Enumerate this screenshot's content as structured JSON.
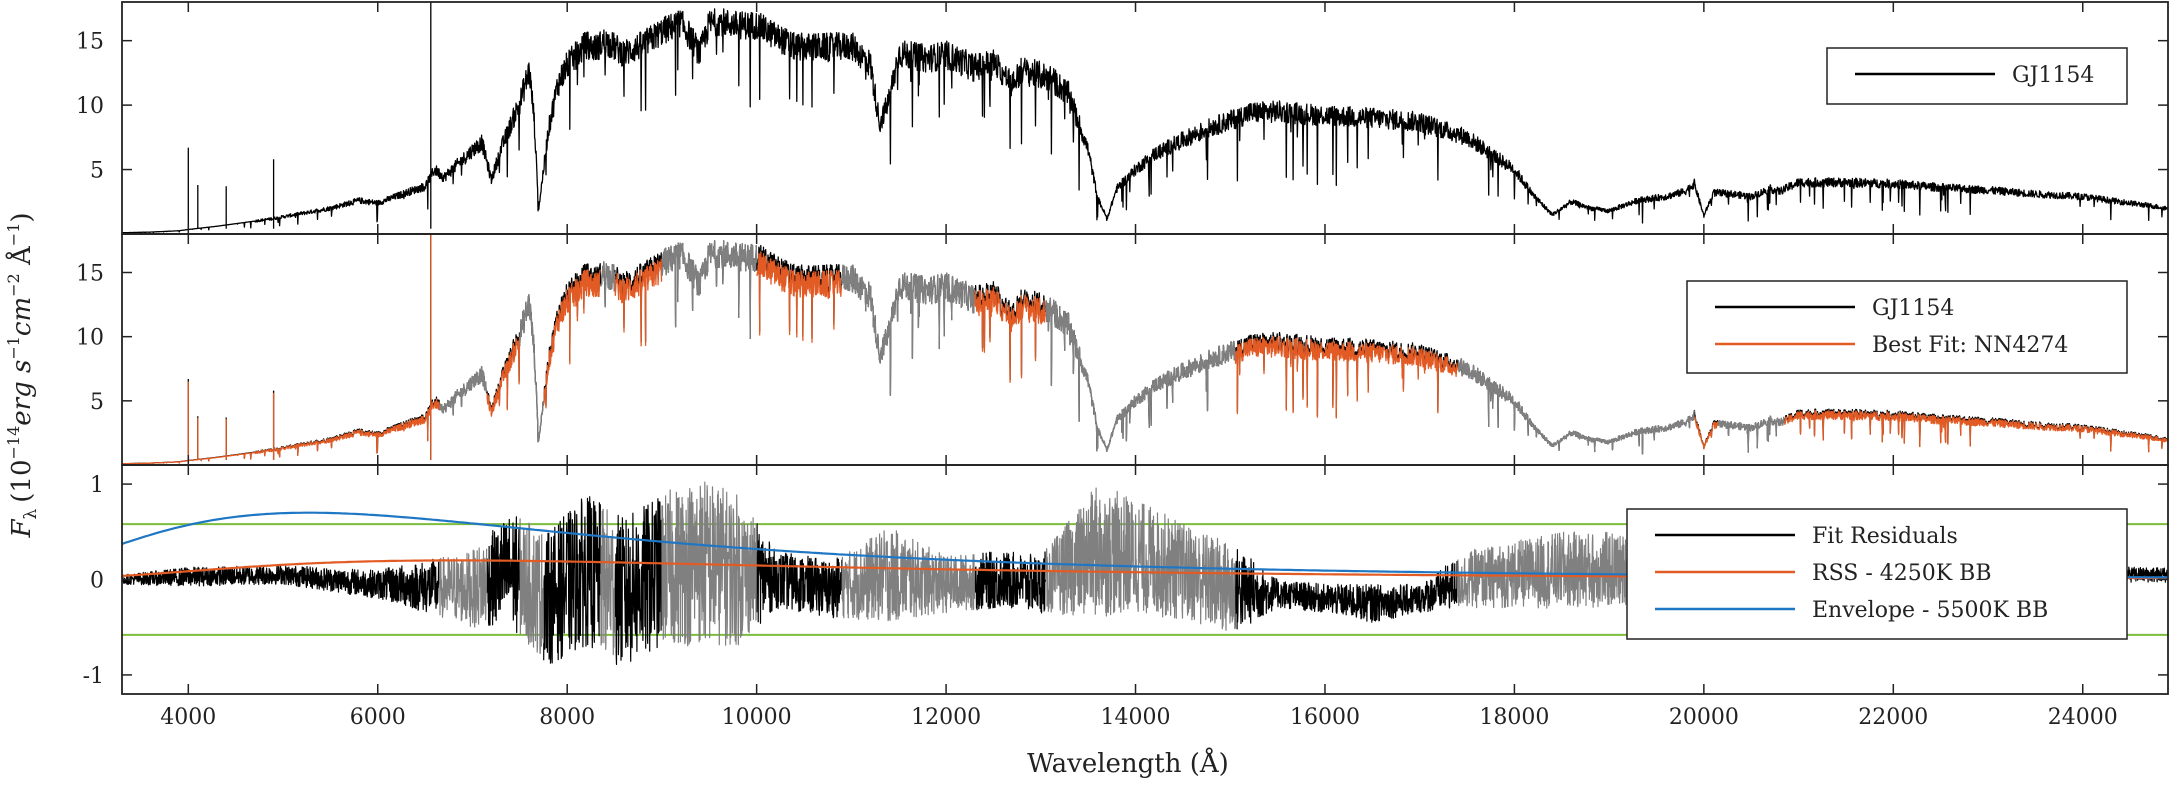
{
  "chart_data": {
    "type": "line",
    "shared_x": {
      "label": "Wavelength (Å)",
      "lim": [
        3300,
        24900
      ],
      "ticks": [
        4000,
        6000,
        8000,
        10000,
        12000,
        14000,
        16000,
        18000,
        20000,
        22000,
        24000
      ],
      "tick_labels": [
        "4000",
        "6000",
        "8000",
        "10000",
        "12000",
        "14000",
        "16000",
        "18000",
        "20000",
        "22000",
        "24000"
      ]
    },
    "shared_ylabel": "F_λ (10^−14 erg s^−1 cm^−2 Å^−1)",
    "ylabel_parts": {
      "symbol": "F",
      "symbol_sub": "λ",
      "open": "(10",
      "exp1": "−14",
      "erg": "erg s",
      "exp2": "−1",
      "cm": "cm",
      "exp3": "−2",
      "angstrom": " Å",
      "exp4": "−1",
      "close": ")"
    },
    "colors": {
      "observed": "#000000",
      "masked": "#808080",
      "fit": "#e35b24",
      "rss": "#e35b24",
      "envelope": "#1f77c4",
      "threshold": "#7dbd3c"
    },
    "panels": [
      {
        "ylim": [
          0,
          18
        ],
        "yticks": [
          5,
          10,
          15
        ],
        "ytick_labels": [
          "5",
          "10",
          "15"
        ],
        "legend": {
          "placement": "top-right",
          "entries": [
            "GJ1154"
          ]
        },
        "series": [
          {
            "name": "GJ1154",
            "x": [
              3300,
              3600,
              3900,
              4000,
              4300,
              4600,
              4900,
              5200,
              5500,
              5800,
              6000,
              6300,
              6500,
              6600,
              6700,
              6900,
              7000,
              7100,
              7200,
              7300,
              7500,
              7600,
              7650,
              7700,
              7800,
              7900,
              8000,
              8200,
              8300,
              8400,
              8600,
              8800,
              9000,
              9200,
              9300,
              9400,
              9500,
              9600,
              9800,
              10000,
              10400,
              10800,
              11000,
              11200,
              11300,
              11400,
              11500,
              11800,
              12000,
              12300,
              12500,
              12700,
              12800,
              12900,
              13100,
              13300,
              13500,
              13600,
              13700,
              13800,
              14000,
              14200,
              14500,
              14800,
              15000,
              15200,
              15500,
              16000,
              16500,
              17000,
              17500,
              18000,
              18200,
              18400,
              18600,
              18800,
              19000,
              19300,
              19600,
              19800,
              19900,
              20000,
              20100,
              20300,
              20500,
              20700,
              20800,
              21000,
              21500,
              22000,
              22500,
              23000,
              23500,
              24000,
              24500,
              24900
            ],
            "y": [
              0.1,
              0.15,
              0.25,
              0.35,
              0.6,
              0.9,
              1.2,
              1.6,
              2.0,
              2.6,
              2.4,
              3.2,
              3.7,
              5.0,
              4.4,
              5.8,
              6.5,
              7.1,
              4.2,
              6.6,
              10.2,
              12.7,
              9.0,
              2.0,
              8.0,
              11.6,
              13.1,
              14.7,
              14.4,
              15.0,
              14.0,
              14.7,
              15.7,
              16.4,
              15.3,
              14.0,
              16.3,
              16.5,
              16.2,
              16.2,
              14.5,
              14.5,
              14.6,
              13.2,
              8.5,
              10.5,
              14.0,
              13.6,
              13.9,
              12.9,
              13.3,
              11.6,
              12.7,
              12.5,
              12.1,
              10.8,
              6.5,
              2.8,
              1.2,
              3.5,
              5.0,
              6.2,
              7.3,
              8.3,
              8.8,
              9.4,
              9.5,
              9.2,
              9.0,
              8.7,
              7.5,
              5.0,
              3.0,
              1.5,
              2.5,
              2.0,
              1.8,
              2.6,
              2.9,
              3.3,
              3.9,
              1.4,
              3.2,
              3.1,
              2.9,
              3.5,
              3.3,
              4.0,
              4.0,
              3.9,
              3.6,
              3.4,
              3.1,
              2.9,
              2.4,
              2.0
            ]
          }
        ]
      },
      {
        "ylim": [
          0,
          18
        ],
        "yticks": [
          5,
          10,
          15
        ],
        "ytick_labels": [
          "5",
          "10",
          "15"
        ],
        "legend": {
          "placement": "top-right",
          "entries": [
            "GJ1154",
            "Best Fit: NN4274"
          ]
        },
        "masked_ranges": [
          [
            6650,
            7150
          ],
          [
            7500,
            7750
          ],
          [
            8350,
            8500
          ],
          [
            9000,
            10000
          ],
          [
            10900,
            12300
          ],
          [
            13050,
            15050
          ],
          [
            17400,
            19900
          ],
          [
            20150,
            20850
          ]
        ],
        "series": [
          {
            "name": "GJ1154",
            "ref": "panels.0.series.0"
          },
          {
            "name": "Best Fit: NN4274",
            "scale": 0.97
          }
        ]
      },
      {
        "ylim": [
          -1.2,
          1.2
        ],
        "yticks": [
          -1,
          0,
          1
        ],
        "ytick_labels": [
          "-1",
          "0",
          "1"
        ],
        "legend": {
          "placement": "bottom-right",
          "entries": [
            "Fit Residuals",
            "RSS - 4250K BB",
            "Envelope - 5500K BB"
          ]
        },
        "thresholds": [
          0.58,
          -0.58
        ],
        "series": [
          {
            "name": "Fit Residuals",
            "x": [
              3300,
              4000,
              5000,
              6000,
              7000,
              7400,
              7800,
              8200,
              8600,
              9000,
              9400,
              9800,
              10200,
              10800,
              11400,
              12000,
              12600,
              13000,
              13600,
              14000,
              14600,
              15000,
              15500,
              16000,
              16500,
              17000,
              17500,
              18000,
              18500,
              19000,
              19500,
              20000,
              20500,
              21000,
              22000,
              23000,
              24000,
              24900
            ],
            "y": [
              0.0,
              0.03,
              0.05,
              -0.05,
              -0.1,
              0.1,
              -0.2,
              0.1,
              -0.15,
              0.1,
              0.2,
              0.1,
              0.0,
              -0.1,
              0.05,
              -0.05,
              0.0,
              -0.05,
              0.3,
              0.25,
              0.05,
              -0.1,
              -0.15,
              -0.2,
              -0.25,
              -0.2,
              0.0,
              0.05,
              0.1,
              0.1,
              0.1,
              -0.3,
              0.05,
              0.05,
              0.05,
              0.05,
              0.05,
              0.05
            ],
            "amplitude": [
              0.05,
              0.1,
              0.1,
              0.15,
              0.4,
              0.6,
              0.7,
              0.8,
              0.8,
              0.8,
              0.9,
              0.8,
              0.3,
              0.3,
              0.5,
              0.3,
              0.3,
              0.3,
              0.7,
              0.6,
              0.5,
              0.5,
              0.15,
              0.15,
              0.2,
              0.15,
              0.3,
              0.35,
              0.4,
              0.4,
              0.3,
              0.3,
              0.2,
              0.1,
              0.08,
              0.08,
              0.08,
              0.08
            ]
          },
          {
            "name": "RSS - 4250K BB",
            "temperature_K": 4250,
            "peak": 0.2
          },
          {
            "name": "Envelope - 5500K BB",
            "temperature_K": 5500,
            "peak": 0.7
          }
        ]
      }
    ]
  }
}
